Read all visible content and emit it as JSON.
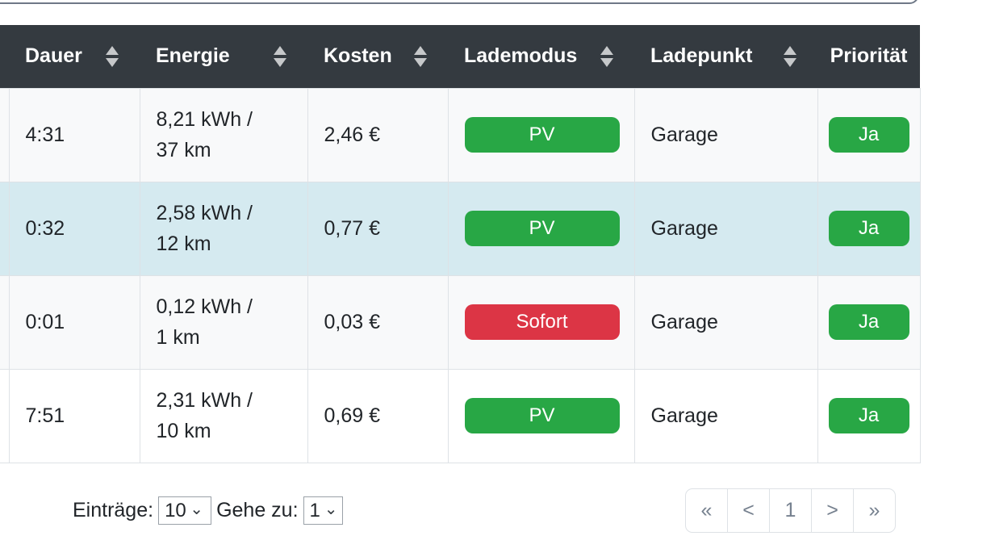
{
  "search": {
    "value": ""
  },
  "table": {
    "columns": [
      {
        "label": "Dauer"
      },
      {
        "label": "Energie"
      },
      {
        "label": "Kosten"
      },
      {
        "label": "Lademodus"
      },
      {
        "label": "Ladepunkt"
      },
      {
        "label": "Priorität"
      }
    ],
    "rows": [
      {
        "dauer": "4:31",
        "energie_line1": "8,21 kWh /",
        "energie_line2": "37 km",
        "kosten": "2,46 €",
        "lademodus": "PV",
        "ladepunkt": "Garage",
        "prioritaet": "Ja",
        "highlighted": false
      },
      {
        "dauer": "0:32",
        "energie_line1": "2,58 kWh /",
        "energie_line2": "12 km",
        "kosten": "0,77 €",
        "lademodus": "PV",
        "ladepunkt": "Garage",
        "prioritaet": "Ja",
        "highlighted": true
      },
      {
        "dauer": "0:01",
        "energie_line1": "0,12 kWh /",
        "energie_line2": "1 km",
        "kosten": "0,03 €",
        "lademodus": "Sofort",
        "ladepunkt": "Garage",
        "prioritaet": "Ja",
        "highlighted": false
      },
      {
        "dauer": "7:51",
        "energie_line1": "2,31 kWh /",
        "energie_line2": "10 km",
        "kosten": "0,69 €",
        "lademodus": "PV",
        "ladepunkt": "Garage",
        "prioritaet": "Ja",
        "highlighted": false
      }
    ]
  },
  "footer": {
    "entries_label": "Einträge:",
    "entries_value": "10",
    "goto_label": "Gehe zu:",
    "goto_value": "1",
    "pagination": [
      "«",
      "<",
      "1",
      ">",
      "»"
    ]
  },
  "icons": {
    "select_chevron": "⌄"
  },
  "colors": {
    "header_bg": "#343a40",
    "row_stripe": "#f8f9fa",
    "row_highlight": "#d5eaf0",
    "badge_pv": "#28a745",
    "badge_sofort": "#dc3545",
    "badge_ja": "#28a745",
    "border": "#dee2e6"
  }
}
